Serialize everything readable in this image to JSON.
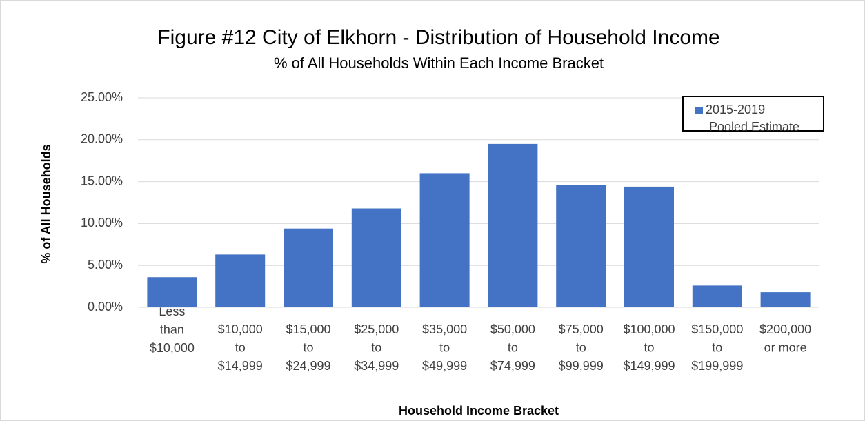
{
  "chart_data": {
    "type": "bar",
    "title": "Figure #12 City of Elkhorn - Distribution of Household Income",
    "subtitle": "% of All Households Within Each Income Bracket",
    "x_label": "Household Income Bracket",
    "y_label": "% of All Households",
    "categories": [
      "Less\nthan\n$10,000",
      "$10,000\nto\n$14,999",
      "$15,000\nto\n$24,999",
      "$25,000\nto\n$34,999",
      "$35,000\nto\n$49,999",
      "$50,000\nto\n$74,999",
      "$75,000\nto\n$99,999",
      "$100,000\nto\n$149,999",
      "$150,000\nto\n$199,999",
      "$200,000\nor more"
    ],
    "series": [
      {
        "name": "2015-2019\nPooled Estimate",
        "color": "#4472c4",
        "values": [
          3.6,
          6.3,
          9.4,
          11.8,
          16.0,
          19.5,
          14.6,
          14.4,
          2.6,
          1.8
        ]
      }
    ],
    "ylim": [
      0,
      25
    ],
    "yticks": [
      {
        "value": 0,
        "label": "0.00%"
      },
      {
        "value": 5,
        "label": "5.00%"
      },
      {
        "value": 10,
        "label": "10.00%"
      },
      {
        "value": 15,
        "label": "15.00%"
      },
      {
        "value": 20,
        "label": "20.00%"
      },
      {
        "value": 25,
        "label": "25.00%"
      }
    ],
    "grid": true,
    "legend": "top-right"
  }
}
